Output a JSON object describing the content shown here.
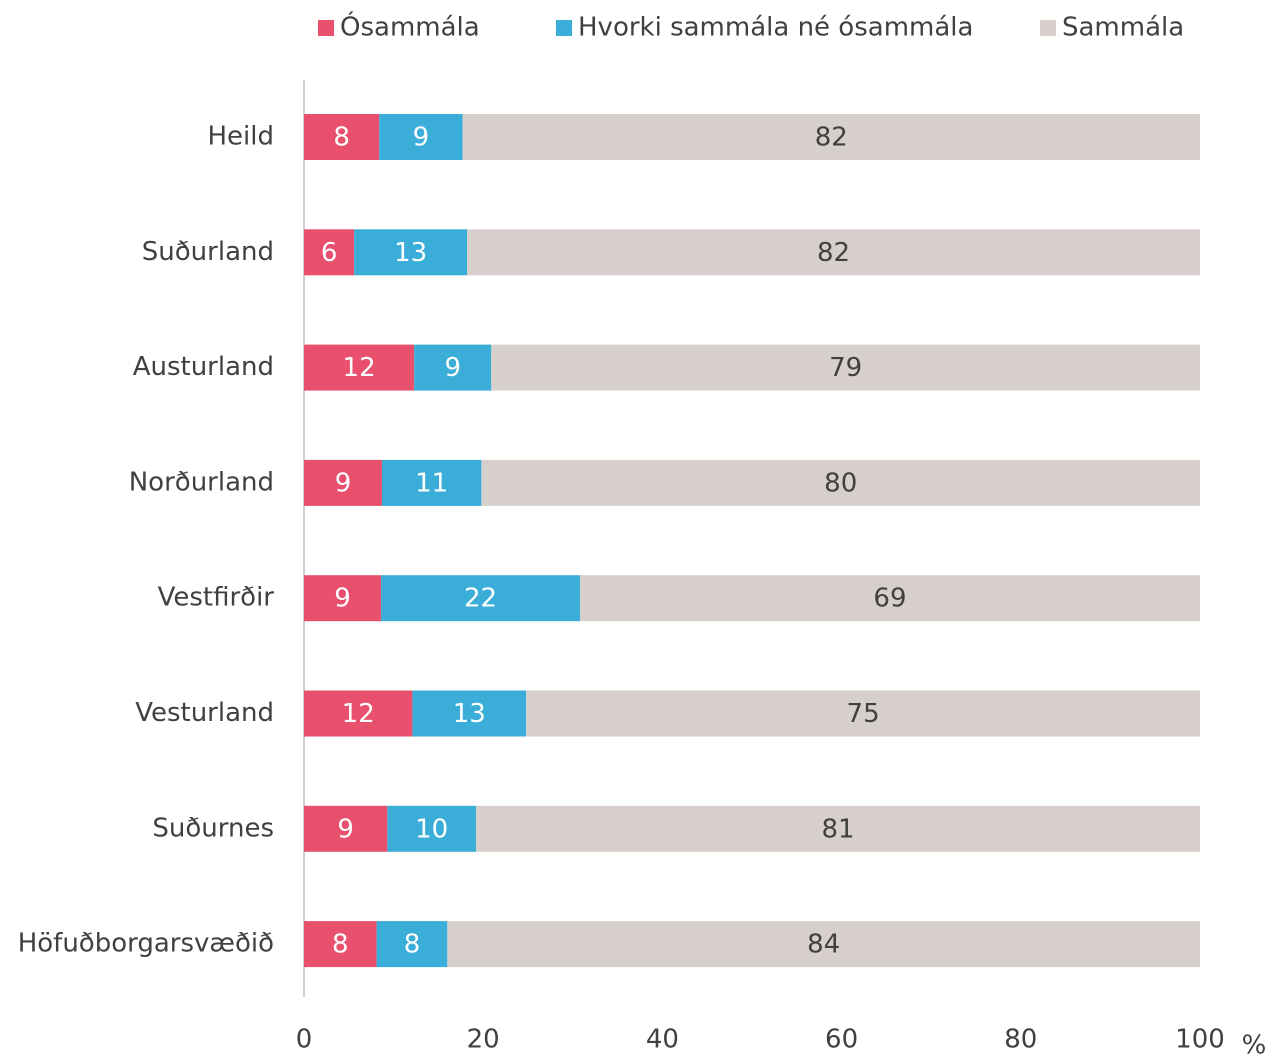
{
  "chart_data": {
    "type": "stacked_barh",
    "categories": [
      "Heild",
      "Suðurland",
      "Austurland",
      "Norðurland",
      "Vestfirðir",
      "Vesturland",
      "Suðurnes",
      "Höfuðborgarsvæðið"
    ],
    "series": [
      {
        "name": "Ósammála",
        "color": "#e8506e",
        "label_color": "#ffffff",
        "values": [
          8.4,
          5.6,
          12.3,
          8.7,
          8.6,
          12.1,
          9.3,
          8.1
        ],
        "value_labels": [
          "8",
          "6",
          "12",
          "9",
          "9",
          "12",
          "9",
          "8"
        ]
      },
      {
        "name": "Hvorki sammála né ósammála",
        "color": "#3aaed8",
        "label_color": "#ffffff",
        "values": [
          9.3,
          12.6,
          8.6,
          11.1,
          22.2,
          12.7,
          9.9,
          7.9
        ],
        "value_labels": [
          "9",
          "13",
          "9",
          "11",
          "22",
          "13",
          "10",
          "8"
        ]
      },
      {
        "name": "Sammála",
        "color": "#d7cfcc",
        "label_color": "#404040",
        "values": [
          82.3,
          81.8,
          79.1,
          80.2,
          69.2,
          75.2,
          80.8,
          84.0
        ],
        "value_labels": [
          "82",
          "82",
          "79",
          "80",
          "69",
          "75",
          "81",
          "84"
        ]
      }
    ],
    "xlim": [
      0,
      100
    ],
    "xticks": [
      0,
      20,
      40,
      60,
      80,
      100
    ],
    "x_unit": "%",
    "legend": "top"
  }
}
